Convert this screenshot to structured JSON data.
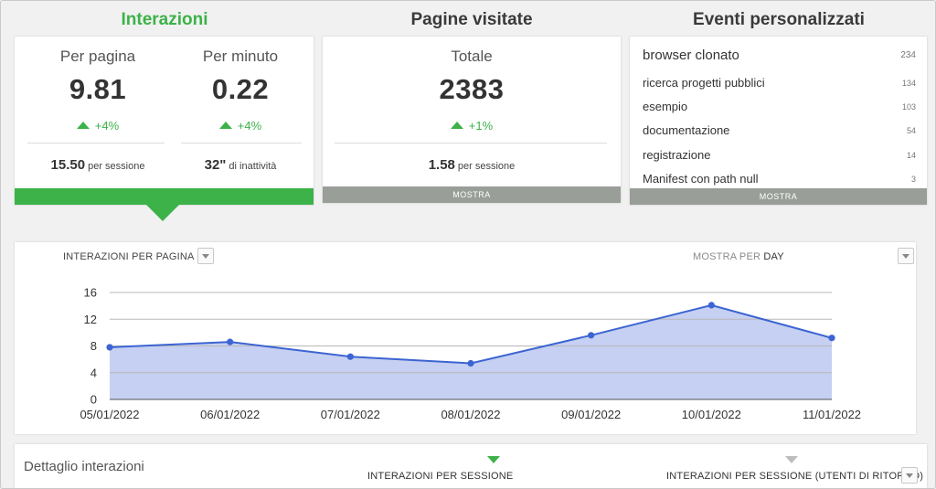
{
  "colors": {
    "accent": "#3db249",
    "gray_bar": "#999e99",
    "series": "#3c64d2",
    "area": "#c5d0f2"
  },
  "columns": {
    "interactions": {
      "title": "Interazioni",
      "per_page": {
        "label": "Per pagina",
        "value": "9.81",
        "delta": "+4%"
      },
      "per_minute": {
        "label": "Per minuto",
        "value": "0.22",
        "delta": "+4%"
      },
      "per_session": {
        "value": "15.50",
        "unit": "per sessione"
      },
      "inactivity": {
        "value": "32\"",
        "unit": "di inattività"
      }
    },
    "pages_visited": {
      "title": "Pagine visitate",
      "total": {
        "label": "Totale",
        "value": "2383",
        "delta": "+1%"
      },
      "per_session": {
        "value": "1.58",
        "unit": "per sessione"
      },
      "show_label": "MOSTRA"
    },
    "custom_events": {
      "title": "Eventi personalizzati",
      "items": [
        {
          "name": "browser clonato",
          "count": "234"
        },
        {
          "name": "ricerca progetti pubblici",
          "count": "134"
        },
        {
          "name": "esempio",
          "count": "103"
        },
        {
          "name": "documentazione",
          "count": "54"
        },
        {
          "name": "registrazione",
          "count": "14"
        },
        {
          "name": "Manifest con path null",
          "count": "3"
        }
      ],
      "show_label": "MOSTRA"
    }
  },
  "chart_header": {
    "title": "INTERAZIONI PER PAGINA",
    "show_by_prefix": "MOSTRA PER",
    "show_by_value": "DAY"
  },
  "chart_data": {
    "type": "area",
    "title": "INTERAZIONI PER PAGINA",
    "xlabel": "",
    "ylabel": "",
    "categories": [
      "05/01/2022",
      "06/01/2022",
      "07/01/2022",
      "08/01/2022",
      "09/01/2022",
      "10/01/2022",
      "11/01/2022"
    ],
    "series": [
      {
        "name": "Interazioni per pagina",
        "values": [
          7.8,
          8.6,
          6.4,
          5.4,
          9.6,
          14.1,
          9.2
        ]
      }
    ],
    "ylim": [
      0,
      16
    ],
    "yticks": [
      0,
      4,
      8,
      12,
      16
    ],
    "grid": true,
    "legend": "none"
  },
  "detail": {
    "title": "Dettaglio interazioni",
    "tabs": [
      {
        "label": "INTERAZIONI PER SESSIONE"
      },
      {
        "label": "INTERAZIONI PER SESSIONE (UTENTI DI RITORNO)"
      }
    ]
  }
}
